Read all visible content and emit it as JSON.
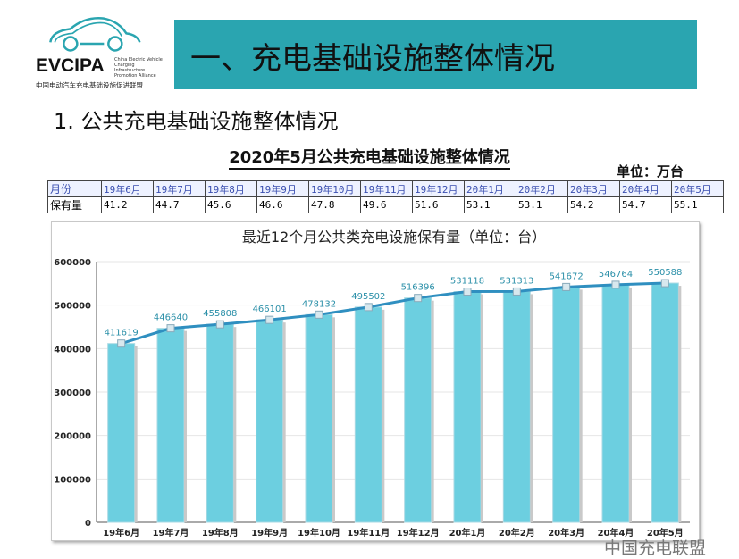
{
  "logo": {
    "name": "EVCIPA",
    "subtitle": "China Electric Vehicle Charging Infrastructure Promotion Alliance",
    "cn": "中国电动汽车充电基础设施促进联盟"
  },
  "banner": {
    "title": "一、充电基础设施整体情况"
  },
  "section": {
    "title": "1. 公共充电基础设施整体情况"
  },
  "table": {
    "title": "2020年5月公共充电基础设施整体情况",
    "unit": "单位：万台",
    "header_label": "月份",
    "row_label": "保有量",
    "months": [
      "19年6月",
      "19年7月",
      "19年8月",
      "19年9月",
      "19年10月",
      "19年11月",
      "19年12月",
      "20年1月",
      "20年2月",
      "20年3月",
      "20年4月",
      "20年5月"
    ],
    "values": [
      "41.2",
      "44.7",
      "45.6",
      "46.6",
      "47.8",
      "49.6",
      "51.6",
      "53.1",
      "53.1",
      "54.2",
      "54.7",
      "55.1"
    ]
  },
  "chart_data": {
    "type": "bar",
    "title": "最近12个月公共类充电设施保有量（单位：台）",
    "categories": [
      "19年6月",
      "19年7月",
      "19年8月",
      "19年9月",
      "19年10月",
      "19年11月",
      "19年12月",
      "20年1月",
      "20年2月",
      "20年3月",
      "20年4月",
      "20年5月"
    ],
    "values": [
      411619,
      446640,
      455808,
      466101,
      478132,
      495502,
      516396,
      531118,
      531313,
      541672,
      546764,
      550588
    ],
    "yticks": [
      0,
      100000,
      200000,
      300000,
      400000,
      500000,
      600000
    ],
    "ylim": [
      0,
      600000
    ],
    "overlay_line": true,
    "colors": {
      "bar": "#6ccfe0",
      "line": "#2f8fc0",
      "label": "#2a8fa8"
    }
  },
  "watermark": "中国充电联盟"
}
